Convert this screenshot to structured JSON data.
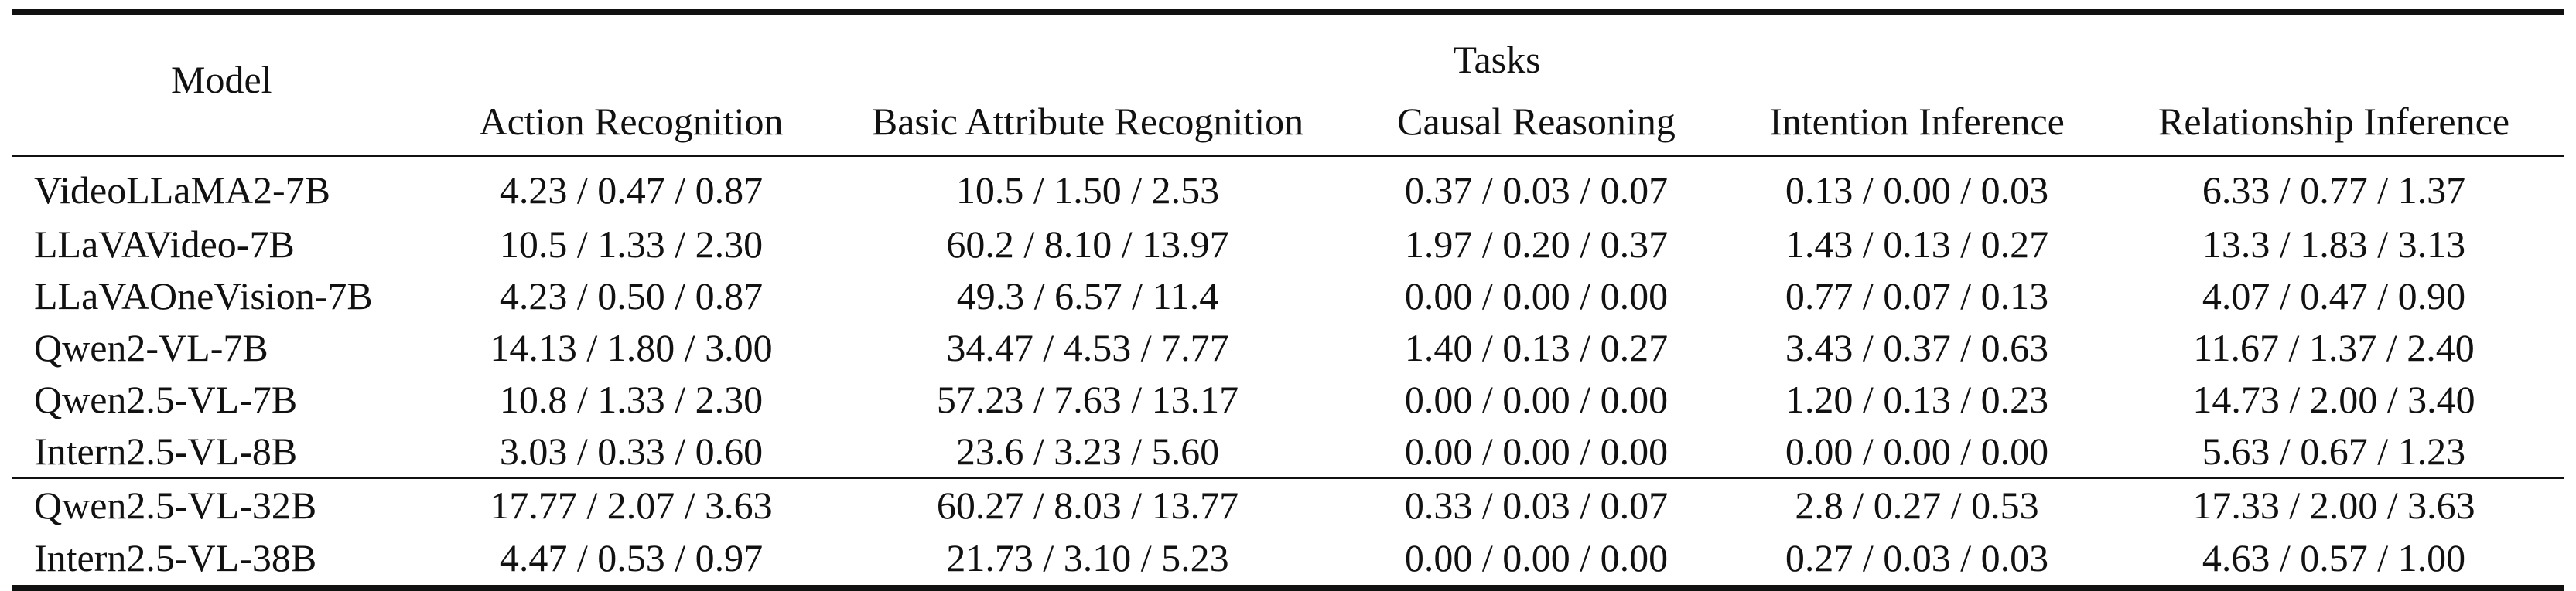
{
  "table": {
    "model_header": "Model",
    "tasks_header": "Tasks",
    "columns": [
      "Action Recognition",
      "Basic Attribute Recognition",
      "Causal Reasoning",
      "Intention Inference",
      "Relationship Inference"
    ],
    "group1": [
      {
        "model": "VideoLLaMA2-7B",
        "values": [
          "4.23 / 0.47 / 0.87",
          "10.5 / 1.50 / 2.53",
          "0.37 / 0.03 / 0.07",
          "0.13 / 0.00 / 0.03",
          "6.33 / 0.77 / 1.37"
        ]
      },
      {
        "model": "LLaVAVideo-7B",
        "values": [
          "10.5 / 1.33 / 2.30",
          "60.2 / 8.10 / 13.97",
          "1.97 / 0.20 / 0.37",
          "1.43 / 0.13 / 0.27",
          "13.3 / 1.83 / 3.13"
        ]
      },
      {
        "model": "LLaVAOneVision-7B",
        "values": [
          "4.23 / 0.50 / 0.87",
          "49.3 / 6.57 / 11.4",
          "0.00 / 0.00 / 0.00",
          "0.77 / 0.07 / 0.13",
          "4.07 / 0.47 / 0.90"
        ]
      },
      {
        "model": "Qwen2-VL-7B",
        "values": [
          "14.13 / 1.80 / 3.00",
          "34.47 / 4.53 / 7.77",
          "1.40 / 0.13 / 0.27",
          "3.43 / 0.37 / 0.63",
          "11.67 / 1.37 / 2.40"
        ]
      },
      {
        "model": "Qwen2.5-VL-7B",
        "values": [
          "10.8 / 1.33 / 2.30",
          "57.23 / 7.63 / 13.17",
          "0.00 / 0.00 / 0.00",
          "1.20 / 0.13 / 0.23",
          "14.73 / 2.00 / 3.40"
        ]
      },
      {
        "model": "Intern2.5-VL-8B",
        "values": [
          "3.03 / 0.33 / 0.60",
          "23.6 / 3.23 / 5.60",
          "0.00 / 0.00 / 0.00",
          "0.00 / 0.00 / 0.00",
          "5.63 / 0.67 / 1.23"
        ]
      }
    ],
    "group2": [
      {
        "model": "Qwen2.5-VL-32B",
        "values": [
          "17.77 / 2.07 / 3.63",
          "60.27 / 8.03 / 13.77",
          "0.33 / 0.03 / 0.07",
          "2.8 / 0.27 / 0.53",
          "17.33 / 2.00 / 3.63"
        ]
      },
      {
        "model": "Intern2.5-VL-38B",
        "values": [
          "4.47 / 0.53 / 0.97",
          "21.73 / 3.10 / 5.23",
          "0.00 / 0.00 / 0.00",
          "0.27 / 0.03 / 0.03",
          "4.63 / 0.57 / 1.00"
        ]
      }
    ]
  }
}
